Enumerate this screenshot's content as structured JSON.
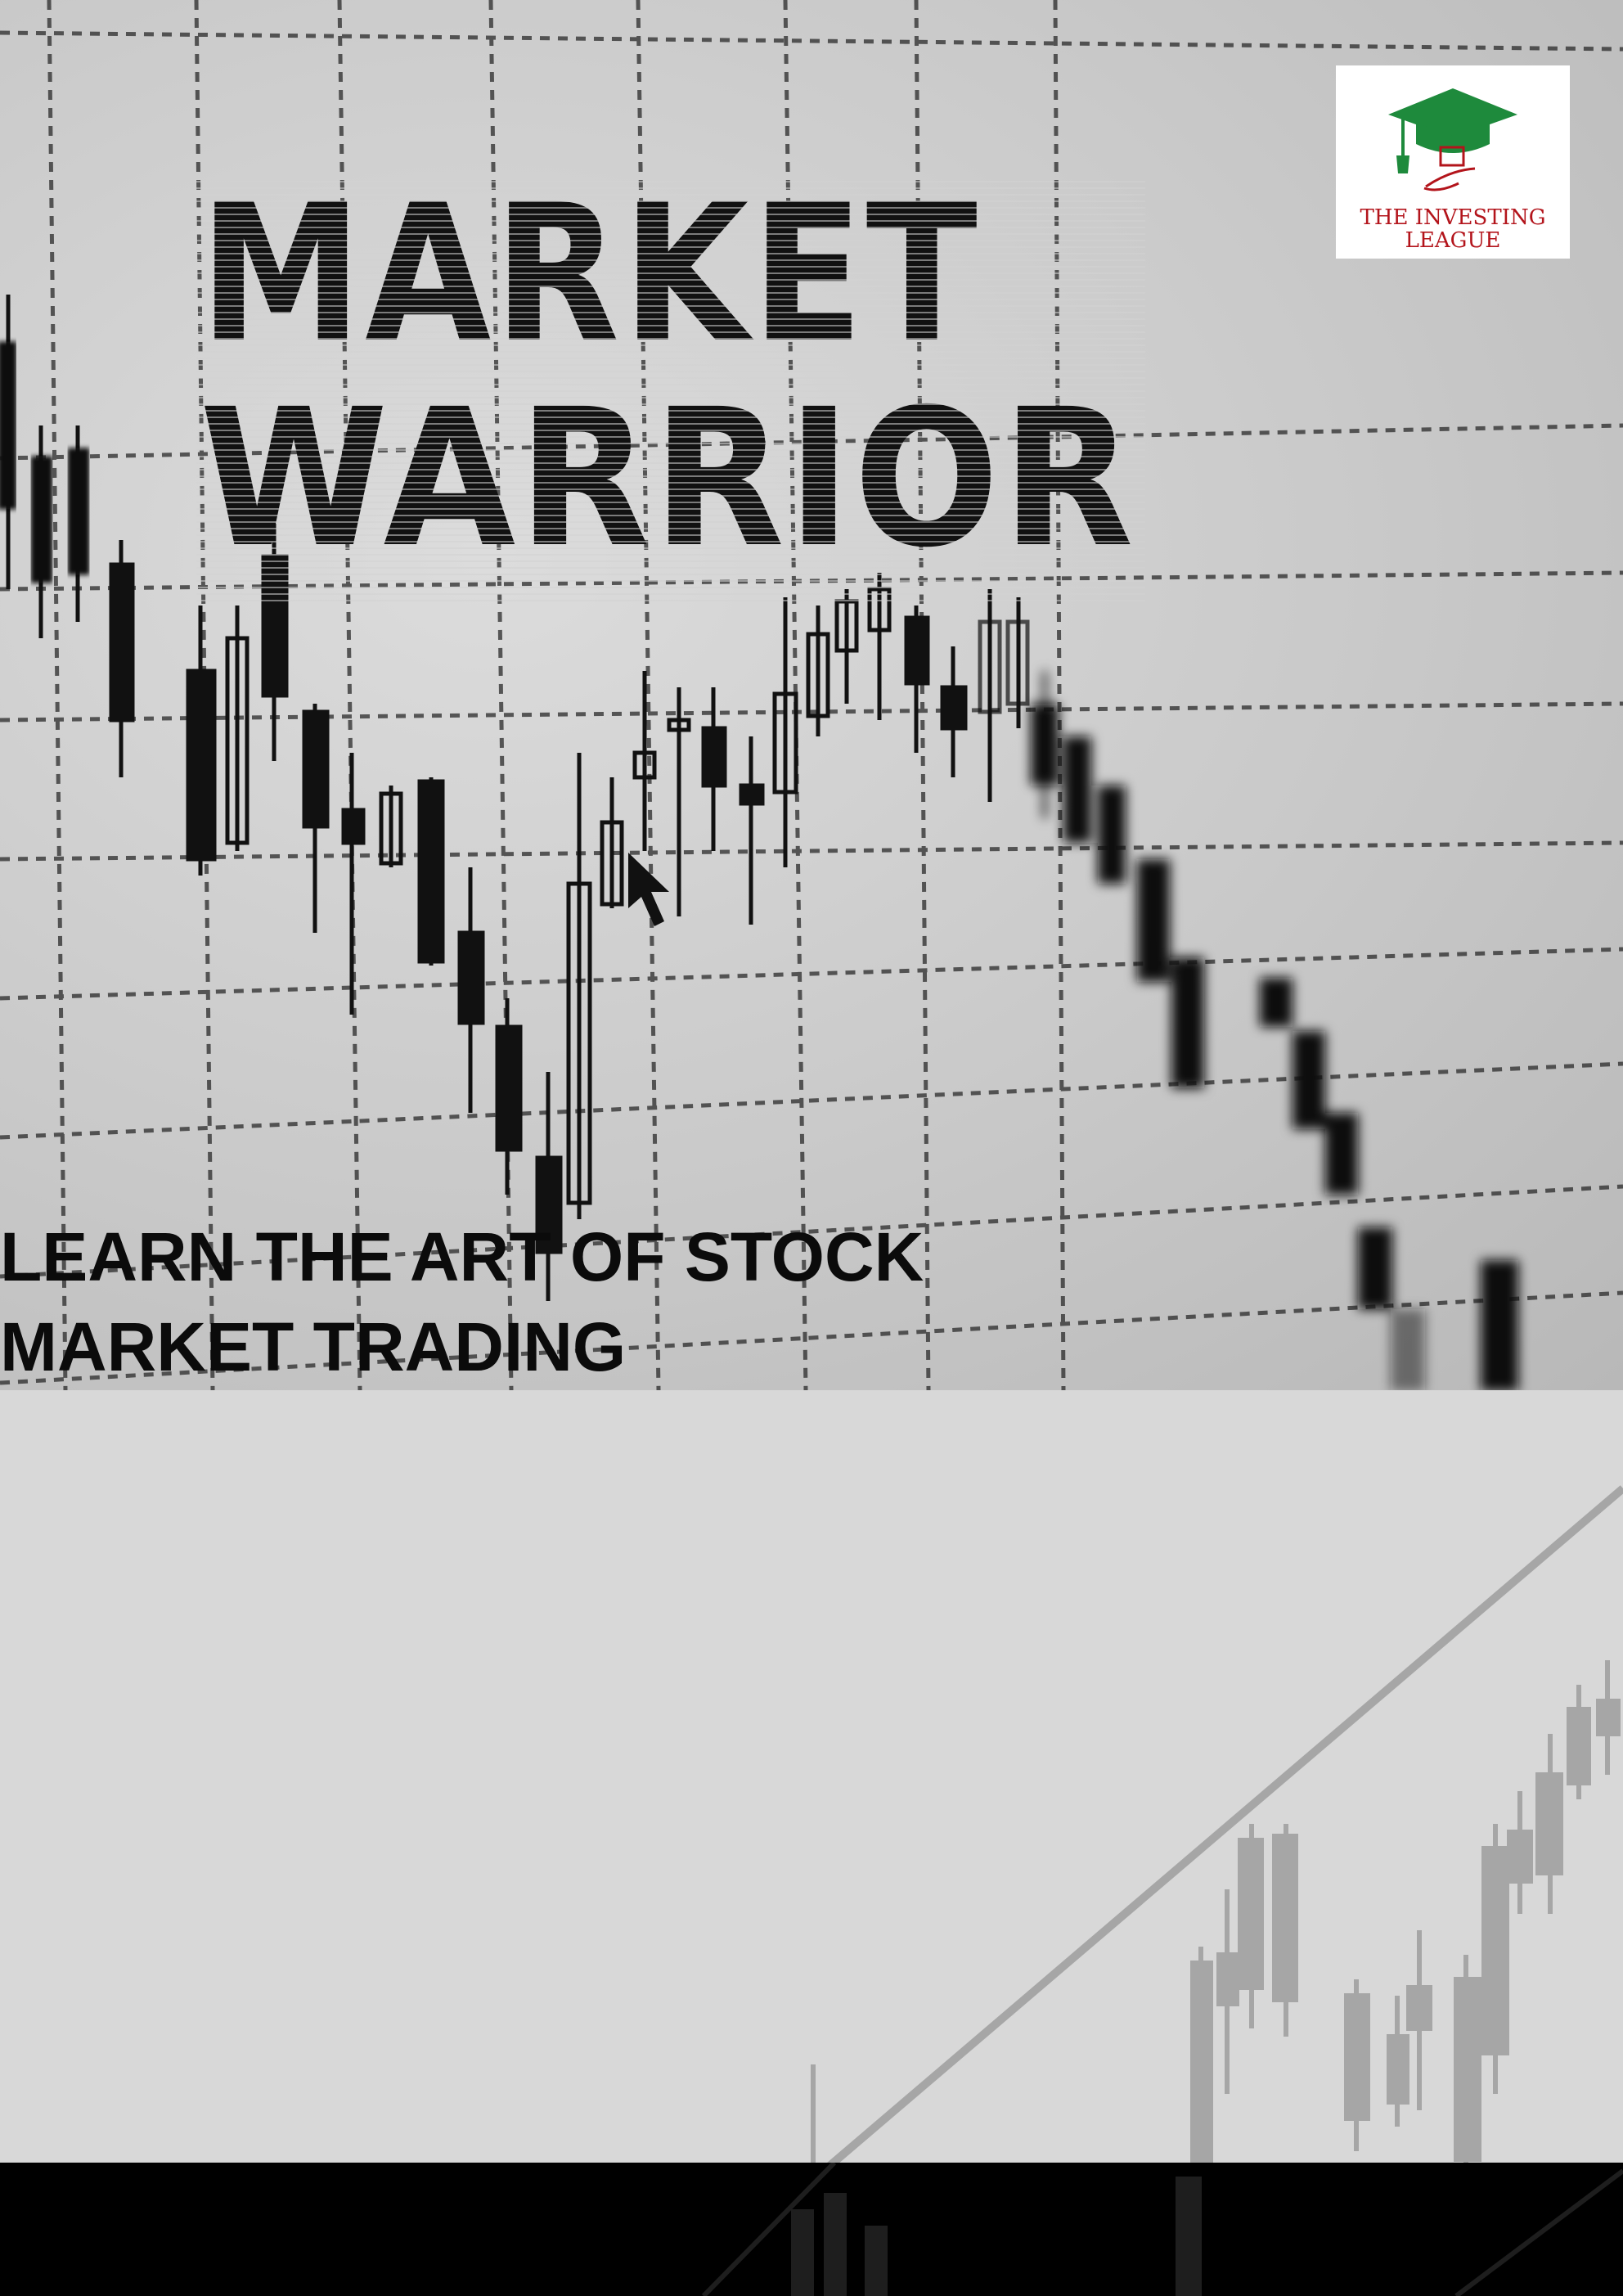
{
  "title": {
    "line1": "MARKET",
    "line2": "WARRIOR"
  },
  "tagline": {
    "line1": "LEARN THE ART OF STOCK",
    "line2": "MARKET TRADING"
  },
  "logo": {
    "line1": "THE INVESTING",
    "line2": "LEAGUE",
    "icon": "graduation-cap-icon",
    "colors": {
      "cap": "#1e8a3c",
      "text": "#b3141b"
    }
  },
  "colors": {
    "hero_bg": "#c9c9c9",
    "lower_bg": "#d8d8d8",
    "footer_bg": "#000000",
    "text": "#0b0b0b"
  }
}
